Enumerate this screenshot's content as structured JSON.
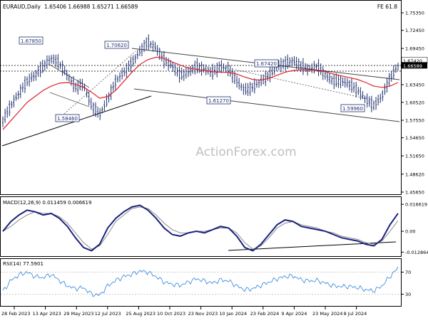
{
  "chart_data": {
    "type": "candlestick",
    "header": {
      "instrument": "EURAUD,Daily",
      "ohlc": "1.65406 1.66988 1.65271 1.66589",
      "corner": "FE 61.8"
    },
    "watermark": "ActionForex.com",
    "price_axis": {
      "ticks": [
        "1.75350",
        "1.72450",
        "1.69450",
        "1.66450",
        "1.63450",
        "1.60520",
        "1.57550",
        "1.54650",
        "1.51650",
        "1.48620",
        "1.45650"
      ],
      "ylim": [
        1.4565,
        1.7535
      ],
      "current_price": "1.66589",
      "fe_level": "1.67420"
    },
    "x_axis": {
      "labels": [
        "28 Feb 2023",
        "13 Apr 2023",
        "29 May 2023",
        "12 Jul 2023",
        "25 Aug 2023",
        "10 Oct 2023",
        "23 Nov 2023",
        "10 Jan 2024",
        "23 Feb 2024",
        "9 Apr 2024",
        "23 May 2024",
        "8 Jul 2024"
      ]
    },
    "annotations": [
      "1.67850",
      "1.70620",
      "1.67420",
      "1.58460",
      "1.61270",
      "1.59960"
    ],
    "price_series": {
      "close": [
        1.575,
        1.6,
        1.62,
        1.64,
        1.65,
        1.665,
        1.678,
        1.67,
        1.65,
        1.63,
        1.635,
        1.6,
        1.585,
        1.61,
        1.64,
        1.655,
        1.67,
        1.69,
        1.705,
        1.695,
        1.675,
        1.665,
        1.65,
        1.655,
        1.665,
        1.66,
        1.655,
        1.665,
        1.66,
        1.64,
        1.625,
        1.63,
        1.64,
        1.65,
        1.665,
        1.67,
        1.674,
        1.665,
        1.66,
        1.665,
        1.65,
        1.64,
        1.64,
        1.635,
        1.625,
        1.61,
        1.6,
        1.615,
        1.645,
        1.666
      ],
      "ma_slow": [
        1.56,
        1.575,
        1.59,
        1.605,
        1.615,
        1.625,
        1.632,
        1.637,
        1.638,
        1.635,
        1.63,
        1.622,
        1.612,
        1.615,
        1.625,
        1.64,
        1.655,
        1.668,
        1.676,
        1.68,
        1.678,
        1.672,
        1.667,
        1.662,
        1.66,
        1.658,
        1.656,
        1.655,
        1.655,
        1.652,
        1.647,
        1.643,
        1.642,
        1.645,
        1.65,
        1.655,
        1.658,
        1.659,
        1.659,
        1.658,
        1.656,
        1.652,
        1.649,
        1.646,
        1.643,
        1.638,
        1.632,
        1.63,
        1.632,
        1.638
      ]
    },
    "macd": {
      "label": "MACD(12,26,9) 0.011459 0.006619",
      "ticks": [
        "0.016619",
        "0.00",
        "-0.012864"
      ],
      "macd": [
        0.0,
        0.006,
        0.01,
        0.013,
        0.012,
        0.01,
        0.011,
        0.008,
        0.003,
        -0.004,
        -0.01,
        -0.012,
        -0.008,
        0.002,
        0.008,
        0.012,
        0.015,
        0.016,
        0.013,
        0.008,
        0.002,
        -0.002,
        -0.003,
        -0.001,
        0.0,
        -0.001,
        0.001,
        0.003,
        0.002,
        -0.003,
        -0.01,
        -0.012,
        -0.008,
        -0.002,
        0.004,
        0.007,
        0.006,
        0.003,
        0.002,
        0.001,
        0.0,
        -0.002,
        -0.004,
        -0.005,
        -0.006,
        -0.008,
        -0.009,
        -0.005,
        0.004,
        0.011
      ],
      "signal": [
        0.0,
        0.003,
        0.007,
        0.01,
        0.012,
        0.011,
        0.011,
        0.009,
        0.005,
        -0.001,
        -0.007,
        -0.011,
        -0.009,
        -0.002,
        0.006,
        0.01,
        0.014,
        0.015,
        0.014,
        0.01,
        0.005,
        0.001,
        -0.001,
        -0.001,
        0.0,
        0.0,
        0.001,
        0.002,
        0.002,
        -0.001,
        -0.007,
        -0.011,
        -0.009,
        -0.004,
        0.002,
        0.005,
        0.006,
        0.004,
        0.003,
        0.002,
        0.0,
        -0.001,
        -0.003,
        -0.004,
        -0.005,
        -0.007,
        -0.008,
        -0.006,
        0.0,
        0.0066
      ]
    },
    "rsi": {
      "label": "RSI(14) 77.5901",
      "ticks": [
        "70",
        "30"
      ],
      "ylim": [
        10,
        90
      ],
      "values": [
        35,
        55,
        65,
        70,
        62,
        60,
        66,
        55,
        45,
        40,
        42,
        30,
        28,
        45,
        55,
        62,
        66,
        72,
        70,
        62,
        52,
        48,
        46,
        52,
        58,
        54,
        50,
        56,
        54,
        45,
        38,
        40,
        46,
        52,
        58,
        62,
        63,
        56,
        54,
        55,
        50,
        45,
        44,
        44,
        42,
        38,
        36,
        45,
        62,
        77.59
      ]
    }
  }
}
